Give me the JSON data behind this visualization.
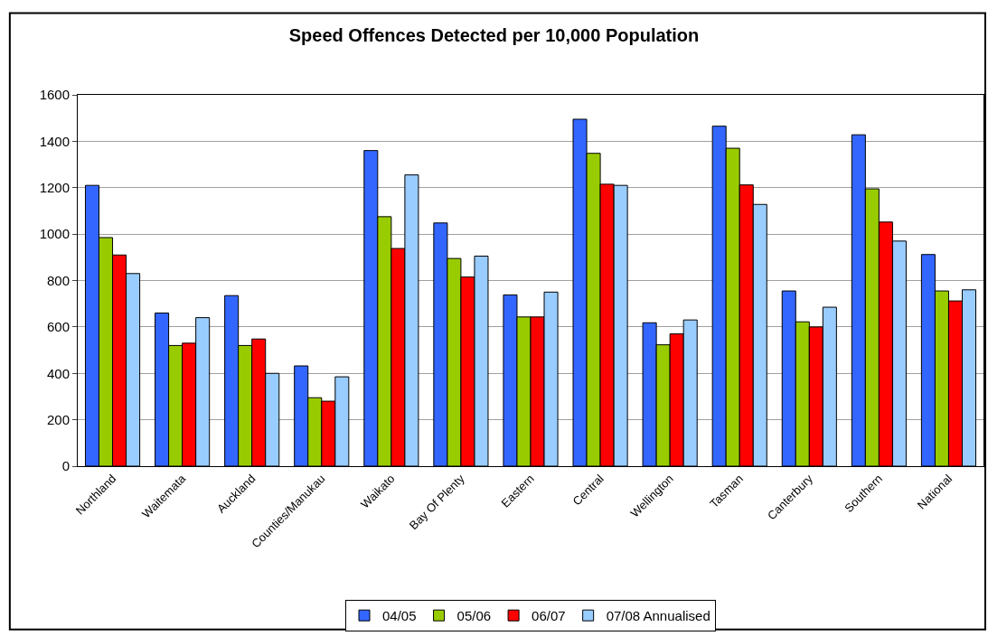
{
  "chart_data": {
    "type": "bar",
    "title": "Speed Offences Detected per 10,000 Population",
    "categories": [
      "Northland",
      "Waitemata",
      "Auckland",
      "Counties/Manukau",
      "Waikato",
      "Bay Of Plenty",
      "Eastern",
      "Central",
      "Wellington",
      "Tasman",
      "Canterbury",
      "Southern",
      "National"
    ],
    "series": [
      {
        "name": "04/05",
        "color": "#3366ff",
        "values": [
          1210,
          660,
          735,
          432,
          1360,
          1048,
          738,
          1495,
          618,
          1465,
          755,
          1428,
          912
        ]
      },
      {
        "name": "05/06",
        "color": "#99cc00",
        "values": [
          985,
          520,
          520,
          295,
          1075,
          895,
          643,
          1348,
          523,
          1370,
          622,
          1195,
          755
        ]
      },
      {
        "name": "06/07",
        "color": "#ff0000",
        "values": [
          910,
          530,
          548,
          280,
          938,
          815,
          643,
          1215,
          570,
          1212,
          600,
          1052,
          712
        ]
      },
      {
        "name": "07/08 Annualised",
        "color": "#99ccff",
        "values": [
          830,
          640,
          400,
          385,
          1255,
          905,
          750,
          1210,
          630,
          1128,
          685,
          970,
          760
        ]
      }
    ],
    "ylim": [
      0,
      1600
    ],
    "yticks": [
      0,
      200,
      400,
      600,
      800,
      1000,
      1200,
      1400,
      1600
    ],
    "grid": "y",
    "legend": "bottom"
  }
}
